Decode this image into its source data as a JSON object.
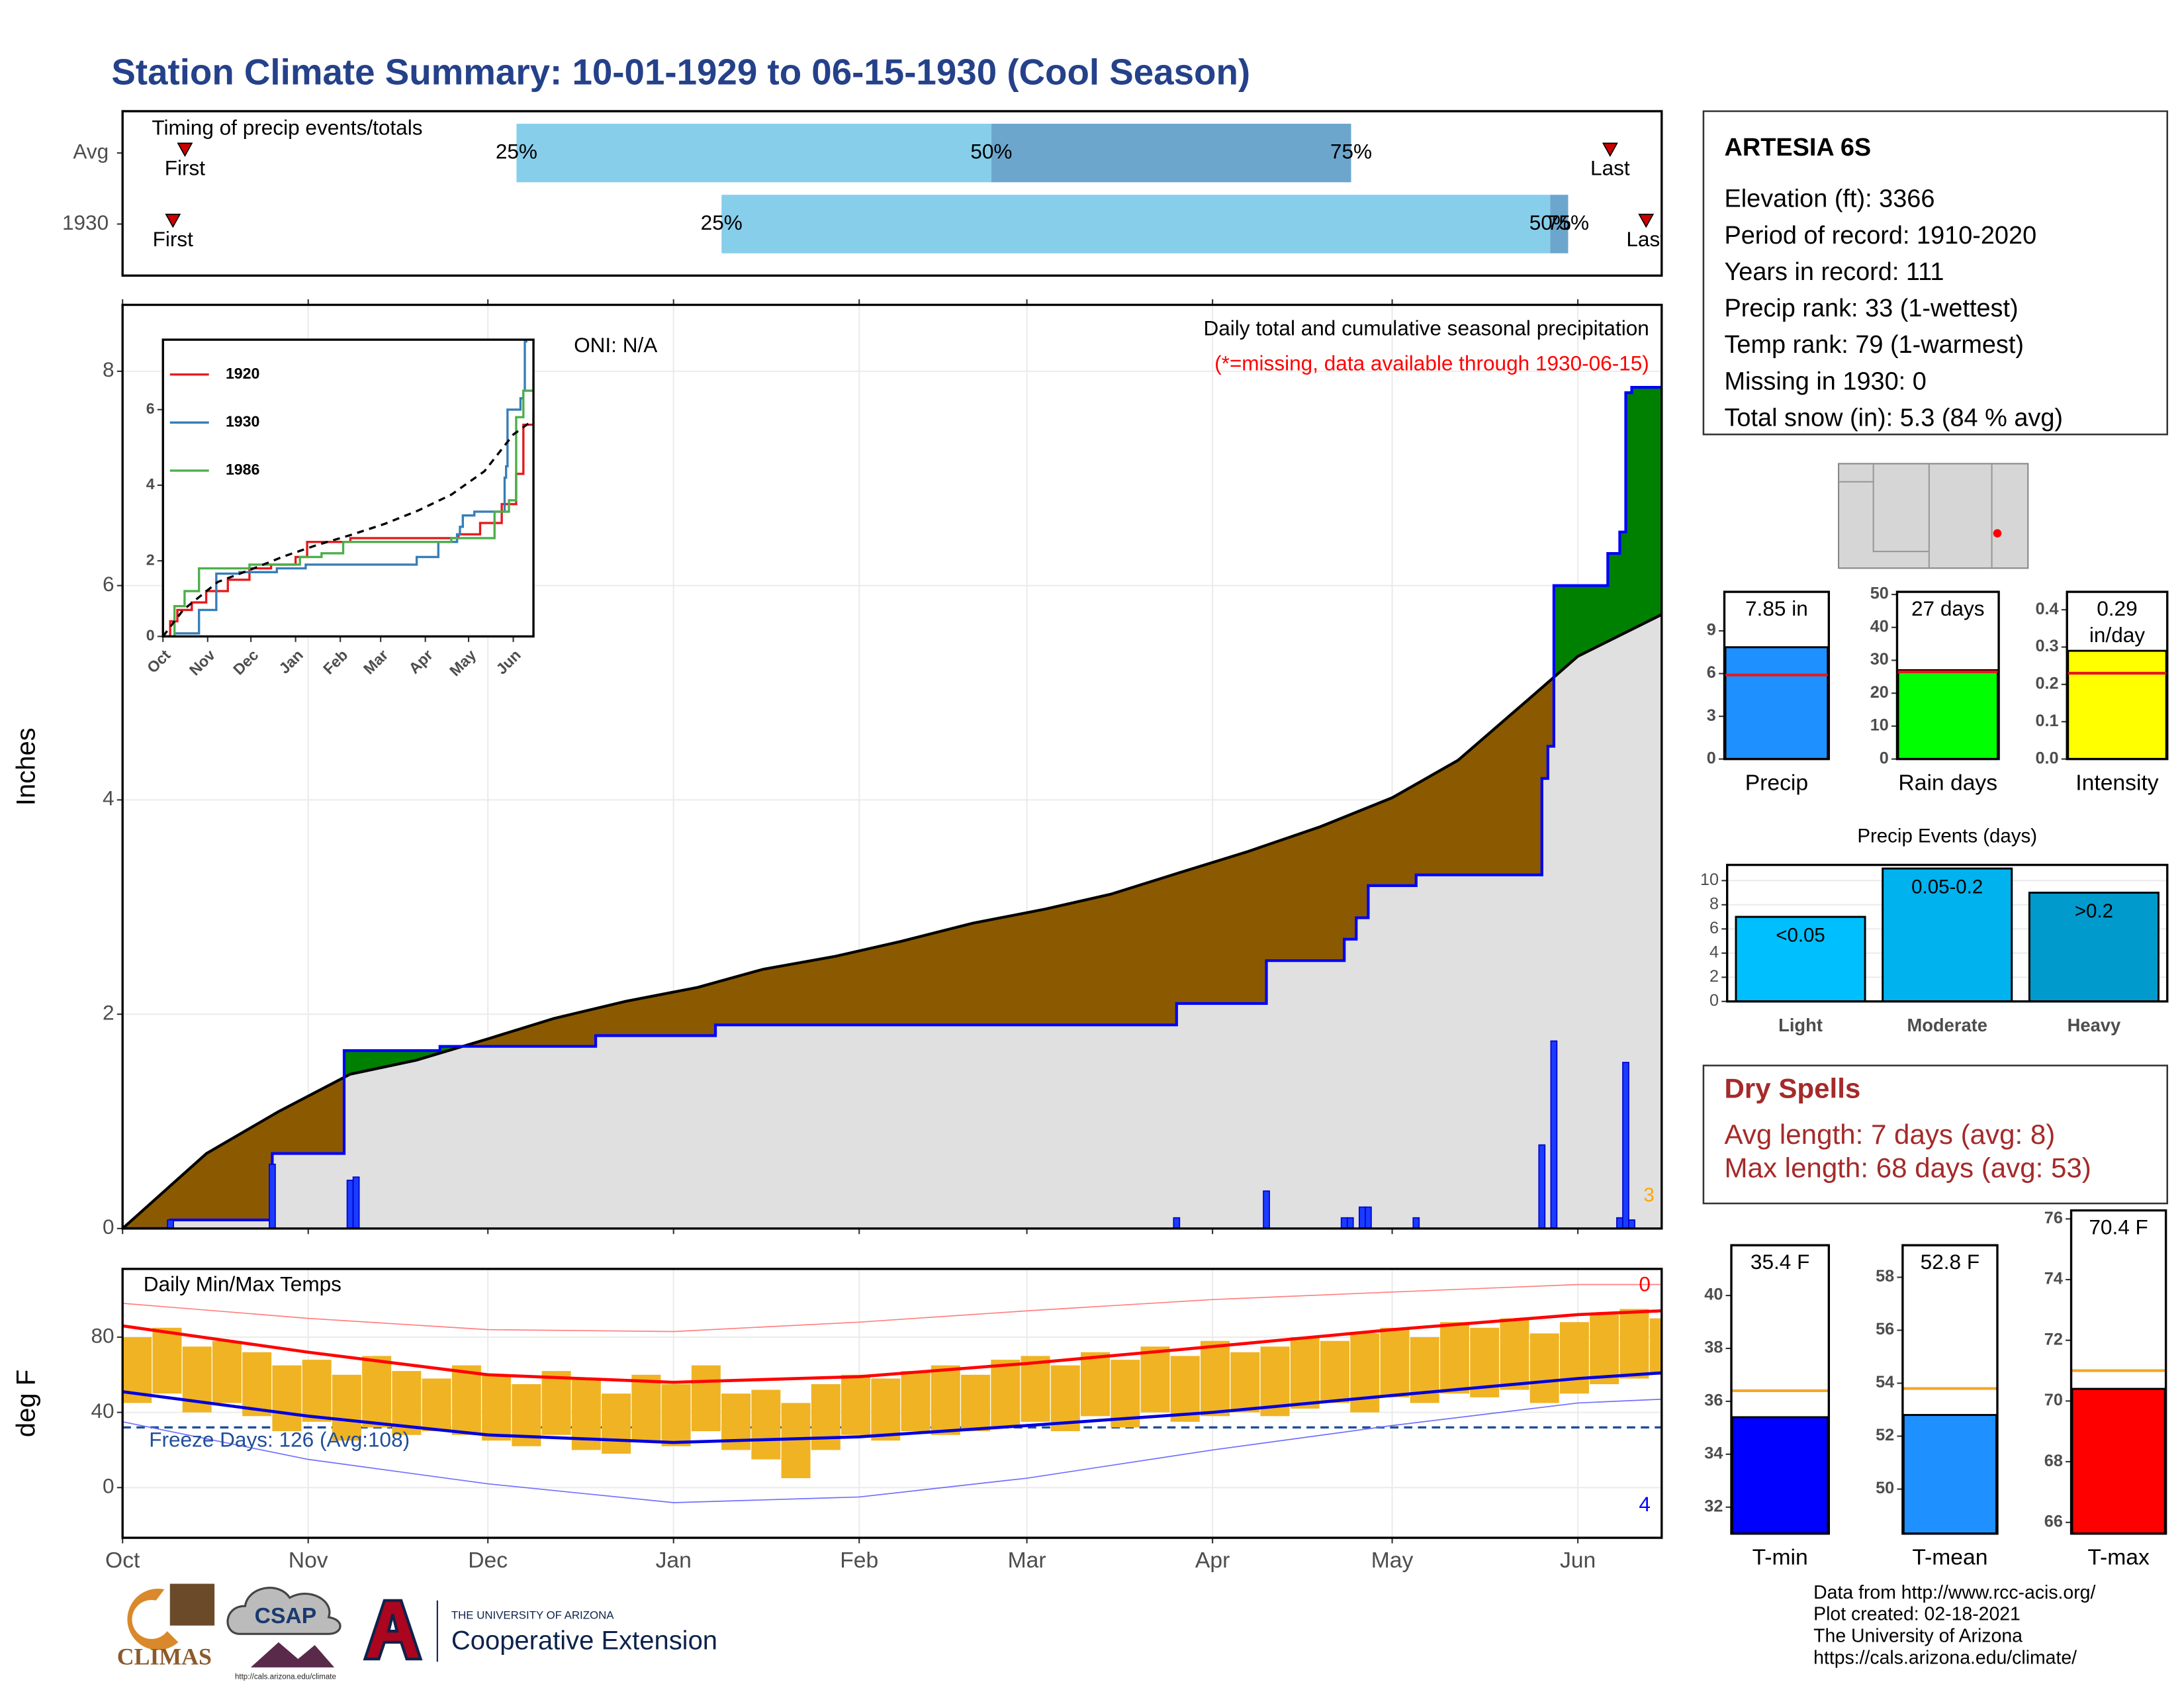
{
  "title": "Station Climate Summary: 10-01-1929 to 06-15-1930 (Cool Season)",
  "station": {
    "name": "ARTESIA 6S",
    "lines": [
      "Elevation (ft): 3366",
      "Period of record: 1910-2020",
      "Years in record: 111",
      "Precip rank: 33 (1-wettest)",
      "Temp rank: 79 (1-warmest)",
      "Missing in 1930: 0",
      "Total snow (in): 5.3 (84 % avg)"
    ]
  },
  "dry_spells": {
    "title": "Dry Spells",
    "lines": [
      "Avg length: 7 days (avg: 8)",
      "Max length: 68 days (avg: 53)"
    ]
  },
  "footer": [
    "Data from http://www.rcc-acis.org/",
    "Plot created: 02-18-2021",
    "The University of Arizona",
    "https://cals.arizona.edu/climate/"
  ],
  "logos": {
    "climas": "CLIMAS",
    "csap": "CSAP",
    "csap_url": "http://cals.arizona.edu/climate",
    "ua": "THE UNIVERSITY OF ARIZONA",
    "extension": "Cooperative Extension"
  },
  "chart_data": [
    {
      "type": "timing",
      "title": "Timing of precip events/totals",
      "xlim": [
        0,
        256.7
      ],
      "labels": {
        "first": "First",
        "last": "Last",
        "q25": "25%",
        "q50": "50%",
        "q75": "75%"
      },
      "colors": [
        "#87ceeb",
        "#6ca6cd"
      ],
      "marker_color": "#cc0000",
      "rows": [
        {
          "name": "Avg",
          "first": 10.4,
          "q25": 65.7,
          "q50": 144.9,
          "q75": 204.9,
          "last": 248.1
        },
        {
          "name": "1930",
          "first": 8.4,
          "q25": 99.9,
          "q50": 238.1,
          "q75": 241.1,
          "last": 254.1
        }
      ]
    },
    {
      "type": "step_area",
      "title": "Daily total and cumulative seasonal precipitation",
      "subtitle": "(*=missing, data available through 1930-06-15)",
      "annotation": "ONI: N/A",
      "y_label": "Inches",
      "xlim": [
        0,
        257
      ],
      "ylim": [
        0,
        8.62
      ],
      "yticks": [
        0,
        2,
        4,
        6,
        8
      ],
      "xticks": [
        0,
        31,
        61,
        92,
        123,
        151,
        182,
        212,
        243
      ],
      "grid": true,
      "above_color": "#008000",
      "below_color": "#8b5a00",
      "base_color": "#e0e0e0",
      "series": [
        {
          "color": "#000000",
          "step": false,
          "x": [
            0,
            5,
            14,
            26,
            38,
            49,
            61,
            72,
            84,
            96,
            107,
            119,
            130,
            142,
            154,
            165,
            177,
            188,
            200,
            212,
            223,
            235,
            243,
            257
          ],
          "values": [
            0,
            0.25,
            0.7,
            1.09,
            1.44,
            1.57,
            1.77,
            1.96,
            2.12,
            2.25,
            2.42,
            2.54,
            2.68,
            2.85,
            2.98,
            3.12,
            3.33,
            3.52,
            3.75,
            4.02,
            4.37,
            4.95,
            5.34,
            5.73
          ]
        },
        {
          "color": "#0000ff",
          "step": true,
          "x": [
            0,
            8,
            25,
            37,
            53,
            79,
            99,
            176,
            191,
            204,
            206,
            208,
            216,
            237,
            238,
            239,
            248,
            250,
            251,
            252
          ],
          "values": [
            0,
            0.08,
            0.7,
            1.66,
            1.7,
            1.8,
            1.9,
            2.1,
            2.5,
            2.7,
            2.9,
            3.2,
            3.3,
            4.2,
            4.5,
            6.0,
            6.3,
            6.5,
            7.8,
            7.85
          ]
        }
      ],
      "daily": {
        "color": "#1a3cff",
        "x": [
          8,
          25,
          38,
          39,
          176,
          191,
          204,
          205,
          207,
          208,
          216,
          237,
          239,
          250,
          251,
          252
        ],
        "values": [
          0.08,
          0.6,
          0.45,
          0.48,
          0.1,
          0.35,
          0.1,
          0.1,
          0.2,
          0.2,
          0.1,
          0.78,
          1.75,
          0.1,
          1.55,
          0.08
        ]
      },
      "annotations": [
        {
          "text": "3",
          "color": "#ffa500"
        }
      ]
    },
    {
      "type": "line",
      "xlim": [
        0,
        257
      ],
      "ylim": [
        0,
        7.85
      ],
      "yticks": [
        0,
        2,
        4,
        6
      ],
      "xticks": [
        {
          "value": 0,
          "label": "Oct"
        },
        {
          "value": 31,
          "label": "Nov"
        },
        {
          "value": 61,
          "label": "Dec"
        },
        {
          "value": 92,
          "label": "Jan"
        },
        {
          "value": 123,
          "label": "Feb"
        },
        {
          "value": 151,
          "label": "Mar"
        },
        {
          "value": 182,
          "label": "Apr"
        },
        {
          "value": 212,
          "label": "May"
        },
        {
          "value": 243,
          "label": "Jun"
        }
      ],
      "series": [
        {
          "name": "1920",
          "color": "#e41a1c",
          "step": true,
          "x": [
            0,
            5,
            10,
            20,
            30,
            45,
            60,
            75,
            92,
            100,
            130,
            182,
            205,
            220,
            235,
            245,
            250,
            257
          ],
          "values": [
            0,
            0.4,
            0.7,
            0.9,
            1.2,
            1.5,
            1.8,
            1.9,
            2.1,
            2.5,
            2.6,
            2.6,
            2.7,
            3.0,
            3.5,
            4.3,
            5.6,
            6.0
          ]
        },
        {
          "name": "1930",
          "color": "#377eb8",
          "step": true,
          "x": [
            0,
            8,
            25,
            37,
            53,
            79,
            99,
            176,
            191,
            204,
            206,
            208,
            216,
            237,
            238,
            239,
            248,
            250,
            251,
            252
          ],
          "values": [
            0,
            0.08,
            0.7,
            1.66,
            1.7,
            1.8,
            1.9,
            2.1,
            2.5,
            2.7,
            2.9,
            3.2,
            3.3,
            4.2,
            4.5,
            6.0,
            6.3,
            6.5,
            7.8,
            7.85
          ]
        },
        {
          "name": "1986",
          "color": "#4daf4a",
          "step": true,
          "x": [
            0,
            8,
            15,
            25,
            60,
            95,
            110,
            125,
            200,
            230,
            240,
            245,
            250,
            257
          ],
          "values": [
            0,
            0.8,
            1.2,
            1.8,
            1.9,
            2.1,
            2.2,
            2.5,
            2.6,
            3.3,
            3.6,
            5.8,
            6.5,
            6.9
          ]
        }
      ],
      "average": {
        "color": "#000000",
        "dash": true,
        "x": [
          0,
          14,
          38,
          61,
          84,
          107,
          130,
          154,
          177,
          200,
          223,
          243,
          257
        ],
        "values": [
          0,
          0.7,
          1.44,
          1.77,
          2.12,
          2.42,
          2.68,
          2.98,
          3.33,
          3.75,
          4.37,
          5.34,
          5.73
        ]
      }
    },
    {
      "type": "temp_range",
      "title": "Daily Min/Max Temps",
      "y_label": "deg F",
      "xlim": [
        0,
        257
      ],
      "ylim": [
        -26.7,
        116.3
      ],
      "yticks": [
        0,
        40,
        80
      ],
      "grid": true,
      "xticks": [
        {
          "value": 0,
          "label": "Oct"
        },
        {
          "value": 31,
          "label": "Nov"
        },
        {
          "value": 61,
          "label": "Dec"
        },
        {
          "value": 92,
          "label": "Jan"
        },
        {
          "value": 123,
          "label": "Feb"
        },
        {
          "value": 151,
          "label": "Mar"
        },
        {
          "value": 182,
          "label": "Apr"
        },
        {
          "value": 212,
          "label": "May"
        },
        {
          "value": 243,
          "label": "Jun"
        }
      ],
      "freeze": {
        "value": 32,
        "label": "Freeze Days: 126 (Avg:108)",
        "color": "#1f4e9a"
      },
      "series": [
        {
          "color": "#ff8080",
          "width": 0.8,
          "x": [
            0,
            31,
            61,
            92,
            123,
            151,
            182,
            212,
            243,
            257
          ],
          "values": [
            98,
            90,
            84,
            83,
            88,
            94,
            100,
            104,
            108,
            108
          ]
        },
        {
          "color": "#7070ff",
          "width": 0.8,
          "x": [
            0,
            31,
            61,
            92,
            123,
            151,
            182,
            212,
            243,
            257
          ],
          "values": [
            35,
            15,
            2,
            -8,
            -5,
            5,
            20,
            33,
            45,
            47
          ]
        },
        {
          "color": "#ff0000",
          "width": 2.2,
          "x": [
            0,
            31,
            61,
            92,
            123,
            151,
            182,
            212,
            243,
            257
          ],
          "values": [
            86,
            72,
            60,
            56,
            59,
            66,
            75,
            84,
            92,
            94
          ]
        },
        {
          "color": "#0000dd",
          "width": 2.2,
          "x": [
            0,
            31,
            61,
            92,
            123,
            151,
            182,
            212,
            243,
            257
          ],
          "values": [
            51,
            38,
            28,
            24,
            27,
            33,
            40,
            49,
            58,
            61
          ]
        }
      ],
      "obs": {
        "color": "#f0b323",
        "width_days": 5,
        "x": [
          0,
          5,
          10,
          15,
          20,
          25,
          30,
          35,
          40,
          45,
          50,
          55,
          60,
          65,
          70,
          75,
          80,
          85,
          90,
          95,
          100,
          105,
          110,
          115,
          120,
          125,
          130,
          135,
          140,
          145,
          150,
          155,
          160,
          165,
          170,
          175,
          180,
          185,
          190,
          195,
          200,
          205,
          210,
          215,
          220,
          225,
          230,
          235,
          240,
          245,
          250,
          255
        ],
        "max": [
          80,
          85,
          75,
          78,
          72,
          65,
          68,
          60,
          70,
          62,
          58,
          65,
          60,
          55,
          62,
          58,
          50,
          60,
          55,
          65,
          50,
          52,
          45,
          55,
          60,
          58,
          62,
          65,
          60,
          68,
          70,
          65,
          72,
          68,
          75,
          70,
          78,
          72,
          75,
          80,
          78,
          82,
          85,
          80,
          88,
          85,
          90,
          82,
          88,
          92,
          95,
          90
        ],
        "min": [
          45,
          50,
          40,
          45,
          38,
          30,
          35,
          25,
          32,
          28,
          30,
          28,
          25,
          22,
          28,
          20,
          18,
          25,
          22,
          30,
          20,
          15,
          5,
          20,
          28,
          25,
          30,
          28,
          30,
          32,
          35,
          30,
          38,
          32,
          40,
          35,
          38,
          40,
          38,
          42,
          45,
          40,
          48,
          45,
          50,
          48,
          52,
          45,
          50,
          55,
          58,
          60
        ]
      },
      "annotations": [
        {
          "text": "0",
          "color": "#ff0000"
        },
        {
          "text": "4",
          "color": "#0000ff"
        }
      ]
    },
    {
      "type": "bar",
      "categories": [
        "Precip"
      ],
      "values": [
        7.85
      ],
      "value_labels": [
        "7.85 in"
      ],
      "colors": [
        "#1e90ff"
      ],
      "avg": 5.9,
      "avg_color": "#e31a1c",
      "ylim": [
        0,
        11.74
      ],
      "yticks": [
        0,
        3,
        6,
        9
      ],
      "bar_width": 0.98
    },
    {
      "type": "bar",
      "categories": [
        "Rain days"
      ],
      "values": [
        27
      ],
      "value_labels": [
        "27 days"
      ],
      "colors": [
        "#00ff00"
      ],
      "avg": 26.5,
      "avg_color": "#e31a1c",
      "ylim": [
        0,
        50.8
      ],
      "yticks": [
        0,
        10,
        20,
        30,
        40,
        50
      ],
      "bar_width": 0.98
    },
    {
      "type": "bar",
      "categories": [
        "Intensity"
      ],
      "values": [
        0.29
      ],
      "value_labels": [
        "0.29 in/day"
      ],
      "colors": [
        "#ffff00"
      ],
      "avg": 0.23,
      "avg_color": "#e31a1c",
      "ylim": [
        0,
        0.448
      ],
      "yticks": [
        {
          "value": 0,
          "label": "0.0"
        },
        0.1,
        0.2,
        0.3,
        0.4
      ],
      "bar_width": 0.98
    },
    {
      "type": "bar",
      "title": "Precip Events (days)",
      "categories": [
        "Light",
        "Moderate",
        "Heavy"
      ],
      "values": [
        7,
        11,
        9
      ],
      "ranges": [
        "<0.05",
        "0.05-0.2",
        ">0.2"
      ],
      "colors": [
        "#00bfff",
        "#00b2ee",
        "#009acd"
      ],
      "ylim": [
        0,
        11.3
      ],
      "yticks": [
        0,
        2,
        4,
        6,
        8,
        10
      ],
      "grid": true,
      "bar_width": 0.88,
      "bold_categories": true
    },
    {
      "type": "bar",
      "categories": [
        "T-min"
      ],
      "values": [
        35.4
      ],
      "value_labels": [
        "35.4 F"
      ],
      "colors": [
        "#0000ff"
      ],
      "avg": 36.4,
      "avg_color": "#f5a623",
      "ylim": [
        31.0,
        41.9
      ],
      "yticks": [
        32,
        34,
        36,
        38,
        40
      ],
      "bar_width": 0.98
    },
    {
      "type": "bar",
      "categories": [
        "T-mean"
      ],
      "values": [
        52.8
      ],
      "value_labels": [
        "52.8 F"
      ],
      "colors": [
        "#1e90ff"
      ],
      "avg": 53.8,
      "avg_color": "#f5a623",
      "ylim": [
        48.32,
        59.21
      ],
      "yticks": [
        50,
        52,
        54,
        56,
        58
      ],
      "bar_width": 0.98
    },
    {
      "type": "bar",
      "categories": [
        "T-max"
      ],
      "values": [
        70.4
      ],
      "value_labels": [
        "70.4 F"
      ],
      "colors": [
        "#ff0000"
      ],
      "avg": 71.0,
      "avg_color": "#f5a623",
      "ylim": [
        65.63,
        76.28
      ],
      "yticks": [
        66,
        68,
        70,
        72,
        74,
        76
      ],
      "bar_width": 0.98
    }
  ]
}
